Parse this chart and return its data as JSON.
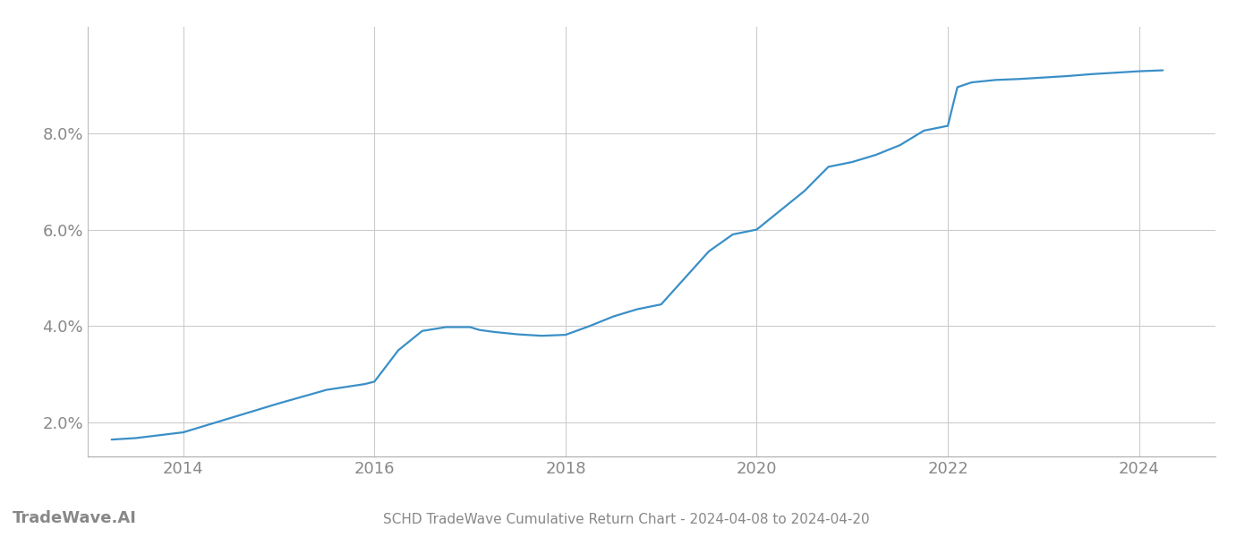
{
  "title": "SCHD TradeWave Cumulative Return Chart - 2024-04-08 to 2024-04-20",
  "watermark": "TradeWave.AI",
  "line_color": "#3a8fc7",
  "background_color": "#ffffff",
  "grid_color": "#cccccc",
  "x_years": [
    2013.25,
    2013.5,
    2014.0,
    2014.5,
    2015.0,
    2015.5,
    2015.9,
    2016.0,
    2016.25,
    2016.5,
    2016.75,
    2017.0,
    2017.1,
    2017.25,
    2017.5,
    2017.75,
    2018.0,
    2018.25,
    2018.5,
    2018.75,
    2019.0,
    2019.25,
    2019.5,
    2019.75,
    2020.0,
    2020.25,
    2020.5,
    2020.75,
    2021.0,
    2021.25,
    2021.5,
    2021.75,
    2022.0,
    2022.1,
    2022.25,
    2022.5,
    2022.75,
    2023.0,
    2023.25,
    2023.5,
    2023.75,
    2024.0,
    2024.25
  ],
  "y_values": [
    1.65,
    1.68,
    1.8,
    2.1,
    2.4,
    2.68,
    2.8,
    2.85,
    3.5,
    3.9,
    3.98,
    3.98,
    3.92,
    3.88,
    3.83,
    3.8,
    3.82,
    4.0,
    4.2,
    4.35,
    4.45,
    5.0,
    5.55,
    5.9,
    6.0,
    6.4,
    6.8,
    7.3,
    7.4,
    7.55,
    7.75,
    8.05,
    8.15,
    8.95,
    9.05,
    9.1,
    9.12,
    9.15,
    9.18,
    9.22,
    9.25,
    9.28,
    9.3
  ],
  "xlim": [
    2013.0,
    2024.8
  ],
  "ylim": [
    1.3,
    10.2
  ],
  "yticks": [
    2.0,
    4.0,
    6.0,
    8.0
  ],
  "xticks": [
    2014,
    2016,
    2018,
    2020,
    2022,
    2024
  ],
  "tick_label_color": "#888888",
  "tick_label_fontsize": 13,
  "title_fontsize": 11,
  "watermark_fontsize": 13,
  "line_width": 1.6
}
